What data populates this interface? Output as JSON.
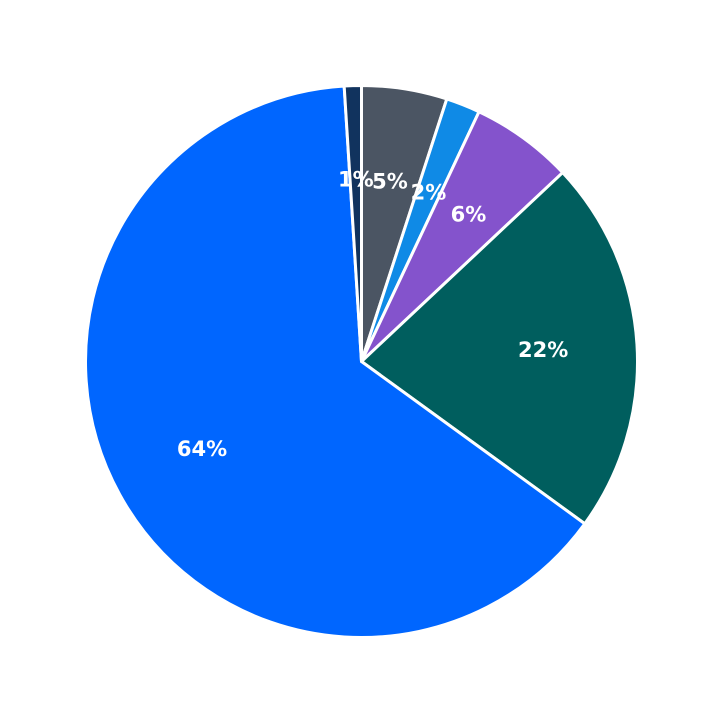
{
  "chart_data": {
    "type": "pie",
    "start": "top",
    "direction": "clockwise",
    "slices": [
      {
        "value": 5,
        "label": "5%",
        "color": "#4b5563"
      },
      {
        "value": 2,
        "label": "2%",
        "color": "#0f8ae6"
      },
      {
        "value": 6,
        "label": "6%",
        "color": "#8453cc"
      },
      {
        "value": 22,
        "label": "22%",
        "color": "#005e5e"
      },
      {
        "value": 64,
        "label": "64%",
        "color": "#0066ff"
      },
      {
        "value": 1,
        "label": "1%",
        "color": "#11335e"
      }
    ]
  }
}
